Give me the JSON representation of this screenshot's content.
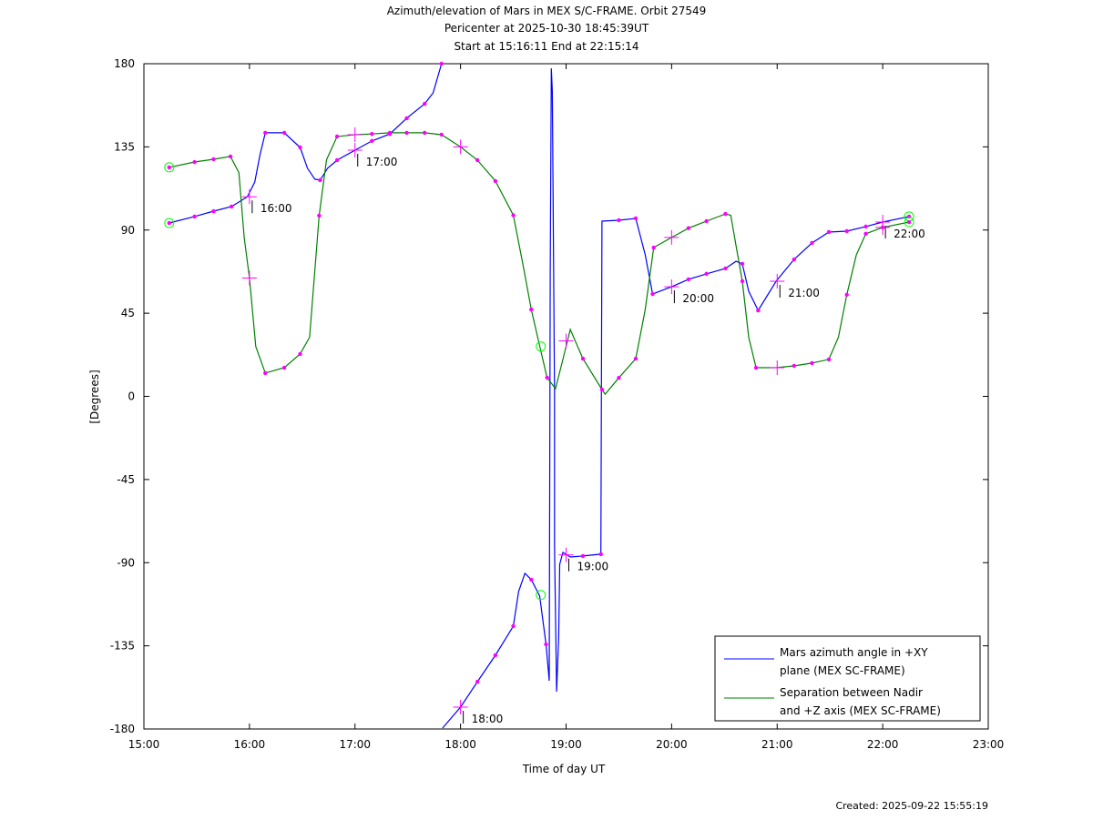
{
  "chart_data": {
    "type": "line",
    "title": "Azimuth/elevation of Mars in MEX S/C-FRAME.  Orbit 27549",
    "subtitle_1": "Pericenter at 2025-10-30 18:45:39UT",
    "subtitle_2": "Start at 15:16:11 End at 22:15:14",
    "xlabel": "Time of day UT",
    "ylabel": "[Degrees]",
    "xlim": [
      15,
      23
    ],
    "ylim": [
      -180,
      180
    ],
    "x_ticks": [
      15,
      16,
      17,
      18,
      19,
      20,
      21,
      22,
      23
    ],
    "x_tick_labels": [
      "15:00",
      "16:00",
      "17:00",
      "18:00",
      "19:00",
      "20:00",
      "21:00",
      "22:00",
      "23:00"
    ],
    "y_ticks": [
      180,
      135,
      90,
      45,
      0,
      -45,
      -90,
      -135,
      -180
    ],
    "y_tick_labels": [
      "180",
      "135",
      "90",
      "45",
      "0",
      "-45",
      "-90",
      "-135",
      "-180"
    ],
    "grid": false,
    "legend_position": "bottom-right",
    "footer": "Created: 2025-09-22 15:55:19",
    "colors": {
      "azimuth": "#0000ff",
      "separation": "#008000",
      "marker": "#ff00ff",
      "endpoint": "#00ff00"
    },
    "series": [
      {
        "name": "Mars azimuth angle in +XY plane (MEX SC-FRAME)",
        "legend_line1": "Mars azimuth angle in +XY",
        "legend_line2": "plane (MEX SC-FRAME)",
        "color": "#0000ff",
        "points": [
          [
            15.24,
            93.8,
            1
          ],
          [
            15.48,
            97.3,
            1
          ],
          [
            15.66,
            100.2,
            1
          ],
          [
            15.83,
            102.7,
            1
          ],
          [
            15.98,
            108,
            0
          ],
          [
            16.05,
            116,
            0
          ],
          [
            16.1,
            130.8,
            0
          ],
          [
            16.15,
            142.6,
            1
          ],
          [
            16.33,
            142.6,
            1
          ],
          [
            16.48,
            134.7,
            1
          ],
          [
            16.55,
            123.4,
            0
          ],
          [
            16.62,
            117.5,
            0
          ],
          [
            16.67,
            117,
            1
          ],
          [
            16.74,
            123.4,
            0
          ],
          [
            16.83,
            127.8,
            1
          ],
          [
            17.0,
            133.2,
            0
          ],
          [
            17.16,
            138.2,
            1
          ],
          [
            17.33,
            142,
            1
          ],
          [
            17.49,
            150.5,
            1
          ],
          [
            17.66,
            158.3,
            1
          ],
          [
            17.74,
            164.2,
            0
          ],
          [
            17.82,
            180,
            1
          ],
          null,
          [
            17.83,
            -179.5,
            0
          ],
          [
            18.0,
            -168.2,
            0
          ],
          [
            18.16,
            -154.4,
            1
          ],
          [
            18.33,
            -140.1,
            1
          ],
          [
            18.5,
            -124.3,
            1
          ],
          [
            18.55,
            -105.6,
            0
          ],
          [
            18.61,
            -95.8,
            0
          ],
          [
            18.67,
            -99.2,
            1
          ],
          [
            18.75,
            -108,
            0
          ],
          [
            18.81,
            -134.2,
            1
          ],
          [
            18.84,
            -153.9,
            0
          ],
          [
            18.85,
            66.7,
            0
          ],
          [
            18.86,
            177.5,
            0
          ],
          [
            18.87,
            165,
            0
          ],
          [
            18.89,
            2.7,
            0
          ],
          [
            18.89,
            -81,
            0
          ],
          [
            18.91,
            -159.8,
            0
          ],
          [
            18.93,
            -130,
            0
          ],
          [
            18.94,
            -90.9,
            0
          ],
          [
            18.97,
            -84.4,
            0
          ],
          [
            19.04,
            -86.9,
            0
          ],
          [
            19.16,
            -86.4,
            1
          ],
          [
            19.33,
            -85.4,
            1
          ],
          [
            19.34,
            94.8,
            0
          ],
          [
            19.5,
            95.3,
            1
          ],
          [
            19.66,
            96.3,
            1
          ],
          [
            19.75,
            76.6,
            0
          ],
          [
            19.82,
            55.4,
            1
          ],
          [
            20.0,
            59.3,
            0
          ],
          [
            20.16,
            63.3,
            1
          ],
          [
            20.33,
            66.3,
            1
          ],
          [
            20.51,
            69.2,
            1
          ],
          [
            20.61,
            73.1,
            0
          ],
          [
            20.67,
            71.7,
            1
          ],
          [
            20.73,
            56.9,
            0
          ],
          [
            20.82,
            46.5,
            1
          ],
          [
            20.99,
            62.3,
            0
          ],
          [
            21.16,
            74.1,
            1
          ],
          [
            21.33,
            83,
            1
          ],
          [
            21.49,
            88.9,
            1
          ],
          [
            21.66,
            89.4,
            1
          ],
          [
            21.84,
            91.9,
            1
          ],
          [
            22.0,
            94.3,
            0
          ],
          [
            22.25,
            97.3,
            1
          ]
        ],
        "hour_marks": [
          [
            16,
            108
          ],
          [
            17,
            133.2
          ],
          [
            18,
            -168.2
          ],
          [
            19,
            -85.8
          ],
          [
            20,
            59.3
          ],
          [
            21,
            62.3
          ],
          [
            22,
            94.3
          ]
        ],
        "hour_labels": [
          "16:00",
          "17:00",
          "18:00",
          "19:00",
          "20:00",
          "21:00",
          "22:00"
        ],
        "pericenter": [
          18.76,
          -107.5
        ],
        "start": [
          15.24,
          93.8
        ],
        "end": [
          22.25,
          97.3
        ]
      },
      {
        "name": "Separation between Nadir and +Z axis (MEX SC-FRAME)",
        "legend_line1": "Separation between Nadir",
        "legend_line2": "and +Z axis (MEX SC-FRAME)",
        "color": "#008000",
        "points": [
          [
            15.24,
            123.9,
            1
          ],
          [
            15.48,
            126.8,
            1
          ],
          [
            15.66,
            128.3,
            1
          ],
          [
            15.82,
            129.8,
            1
          ],
          [
            15.9,
            121,
            0
          ],
          [
            15.95,
            86,
            0
          ],
          [
            16.0,
            64,
            0
          ],
          [
            16.06,
            27,
            0
          ],
          [
            16.15,
            12.6,
            1
          ],
          [
            16.33,
            15.5,
            1
          ],
          [
            16.48,
            22.9,
            1
          ],
          [
            16.57,
            32,
            0
          ],
          [
            16.66,
            97.8,
            1
          ],
          [
            16.73,
            128,
            0
          ],
          [
            16.83,
            140.6,
            1
          ],
          [
            17.0,
            141.6,
            0
          ],
          [
            17.16,
            142,
            1
          ],
          [
            17.33,
            142.6,
            1
          ],
          [
            17.49,
            142.6,
            1
          ],
          [
            17.66,
            142.6,
            1
          ],
          [
            17.82,
            141.6,
            1
          ],
          [
            18.0,
            135,
            0
          ],
          [
            18.16,
            127.8,
            1
          ],
          [
            18.33,
            116.5,
            1
          ],
          [
            18.5,
            98,
            1
          ],
          [
            18.59,
            71.7,
            0
          ],
          [
            18.67,
            47,
            1
          ],
          [
            18.75,
            27.3,
            0
          ],
          [
            18.82,
            10.1,
            1
          ],
          [
            18.9,
            4.2,
            0
          ],
          [
            18.97,
            20,
            0
          ],
          [
            19.04,
            36.2,
            0
          ],
          [
            19.16,
            20.4,
            1
          ],
          [
            19.34,
            3.7,
            1
          ],
          [
            19.37,
            1.2,
            0
          ],
          [
            19.5,
            10,
            1
          ],
          [
            19.66,
            20.4,
            1
          ],
          [
            19.75,
            47,
            0
          ],
          [
            19.83,
            80.5,
            1
          ],
          [
            20.0,
            86,
            0
          ],
          [
            20.16,
            91,
            1
          ],
          [
            20.33,
            94.8,
            1
          ],
          [
            20.51,
            98.7,
            1
          ],
          [
            20.56,
            98,
            0
          ],
          [
            20.61,
            81.5,
            0
          ],
          [
            20.67,
            62.3,
            1
          ],
          [
            20.73,
            32,
            0
          ],
          [
            20.8,
            15.5,
            1
          ],
          [
            20.99,
            15.5,
            0
          ],
          [
            21.16,
            16.5,
            1
          ],
          [
            21.33,
            18,
            1
          ],
          [
            21.49,
            20,
            1
          ],
          [
            21.58,
            32,
            0
          ],
          [
            21.66,
            55,
            1
          ],
          [
            21.75,
            76.6,
            0
          ],
          [
            21.84,
            88,
            1
          ],
          [
            22.0,
            91.4,
            1
          ],
          [
            22.25,
            94.3,
            1
          ]
        ],
        "hour_marks": [
          [
            16,
            64
          ],
          [
            17,
            141.6
          ],
          [
            18,
            135
          ],
          [
            19,
            30
          ],
          [
            20,
            86
          ],
          [
            21,
            15.5
          ],
          [
            22,
            91.4
          ]
        ],
        "pericenter": [
          18.76,
          27
        ],
        "start": [
          15.24,
          123.9
        ],
        "end": [
          22.25,
          94.3
        ]
      }
    ]
  }
}
